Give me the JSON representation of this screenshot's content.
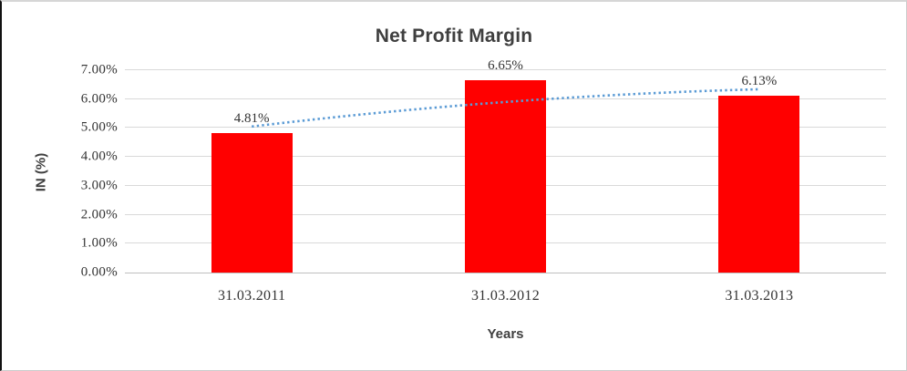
{
  "chart_data": {
    "type": "bar",
    "title": "Net Profit Margin",
    "xlabel": "Years",
    "ylabel": "IN (%)",
    "categories": [
      "31.03.2011",
      "31.03.2012",
      "31.03.2013"
    ],
    "values": [
      4.81,
      6.65,
      6.13
    ],
    "data_labels": [
      "4.81%",
      "6.65%",
      "6.13%"
    ],
    "y_tick_labels": [
      "0.00%",
      "1.00%",
      "2.00%",
      "3.00%",
      "4.00%",
      "5.00%",
      "6.00%",
      "7.00%"
    ],
    "ylim": [
      0,
      7
    ],
    "grid": true,
    "legend": "none",
    "bar_color": "#ff0000",
    "gridline_color": "#d9d9d9",
    "axis_line_color": "#bfbfbf",
    "trendline": {
      "style": "dotted",
      "color": "#5b9bd5",
      "values": [
        5.05,
        5.9,
        6.34
      ]
    }
  }
}
